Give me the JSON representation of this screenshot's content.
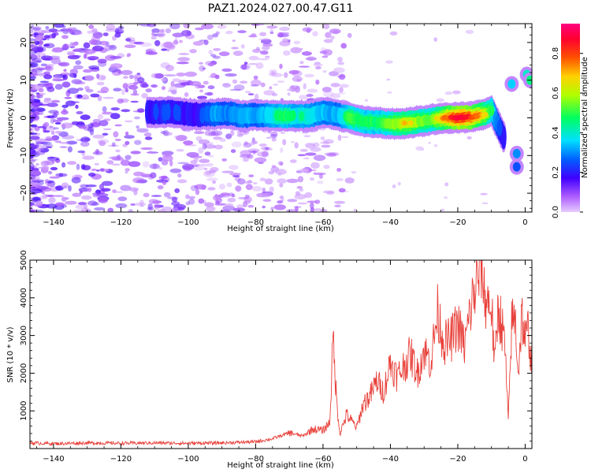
{
  "figure": {
    "title": "PAZ1.2024.027.00.47.G11"
  },
  "chart_data": [
    {
      "type": "heatmap",
      "xlabel": "Height of straight line (km)",
      "ylabel": "Frequency (Hz)",
      "xlim": [
        -147,
        2
      ],
      "ylim": [
        -25,
        25
      ],
      "xticks": [
        -140,
        -120,
        -100,
        -80,
        -60,
        -40,
        -20,
        0
      ],
      "yticks": [
        -20,
        -10,
        0,
        10,
        20
      ],
      "colorbar": {
        "label": "Normalized spectral amplitude",
        "range": [
          0,
          0.95
        ],
        "ticks": [
          0.0,
          0.2,
          0.4,
          0.6,
          0.8
        ],
        "colormap": "gist_rainbow_r (purple-blue-cyan-green-yellow-red-magenta)",
        "low_color": "#ffffff"
      },
      "ridge": [
        {
          "x": -112,
          "y": 1.5,
          "amp": 0.3
        },
        {
          "x": -105,
          "y": 1.5,
          "amp": 0.32
        },
        {
          "x": -97,
          "y": 0.8,
          "amp": 0.28
        },
        {
          "x": -92,
          "y": 1.0,
          "amp": 0.42
        },
        {
          "x": -88,
          "y": 1.2,
          "amp": 0.38
        },
        {
          "x": -84,
          "y": 0.5,
          "amp": 0.45
        },
        {
          "x": -80,
          "y": 0.8,
          "amp": 0.4
        },
        {
          "x": -76,
          "y": 0.6,
          "amp": 0.48
        },
        {
          "x": -72,
          "y": 0.5,
          "amp": 0.55
        },
        {
          "x": -68,
          "y": 0.5,
          "amp": 0.5
        },
        {
          "x": -64,
          "y": 0.5,
          "amp": 0.5
        },
        {
          "x": -60,
          "y": 1.5,
          "amp": 0.45
        },
        {
          "x": -56,
          "y": 0.8,
          "amp": 0.42
        },
        {
          "x": -52,
          "y": 0.0,
          "amp": 0.6
        },
        {
          "x": -48,
          "y": -1.0,
          "amp": 0.55
        },
        {
          "x": -44,
          "y": -1.2,
          "amp": 0.55
        },
        {
          "x": -40,
          "y": -1.5,
          "amp": 0.62
        },
        {
          "x": -36,
          "y": -1.5,
          "amp": 0.7
        },
        {
          "x": -32,
          "y": -1.0,
          "amp": 0.65
        },
        {
          "x": -28,
          "y": -0.5,
          "amp": 0.6
        },
        {
          "x": -24,
          "y": 0.0,
          "amp": 0.75
        },
        {
          "x": -20,
          "y": 0.0,
          "amp": 0.92
        },
        {
          "x": -16,
          "y": 0.2,
          "amp": 0.85
        },
        {
          "x": -12,
          "y": 1.0,
          "amp": 0.7
        },
        {
          "x": -10,
          "y": 2.0,
          "amp": 0.55
        },
        {
          "x": -8,
          "y": -2.0,
          "amp": 0.35
        },
        {
          "x": -6,
          "y": -6.0,
          "amp": 0.3
        }
      ],
      "late_features": [
        {
          "x": -4,
          "y": 9.0,
          "amp": 0.35
        },
        {
          "x": -2.5,
          "y": -9.5,
          "amp": 0.3
        },
        {
          "x": -2.5,
          "y": -13.0,
          "amp": 0.25
        },
        {
          "x": 0.5,
          "y": 11.5,
          "amp": 0.4
        },
        {
          "x": 1.5,
          "y": 10.0,
          "amp": 0.45
        }
      ]
    },
    {
      "type": "line",
      "xlabel": "Height of straight line (km)",
      "ylabel": "SNR (10 * v/v)",
      "xlim": [
        -147,
        2
      ],
      "ylim": [
        0,
        5000
      ],
      "xticks": [
        -140,
        -120,
        -100,
        -80,
        -60,
        -40,
        -20,
        0
      ],
      "yticks": [
        1000,
        2000,
        3000,
        4000,
        5000
      ],
      "color": "#e8403a",
      "x": [
        -147,
        -140,
        -130,
        -120,
        -110,
        -100,
        -90,
        -80,
        -75,
        -70,
        -66,
        -63,
        -60,
        -58,
        -57,
        -56,
        -55,
        -53,
        -50,
        -48,
        -46,
        -44,
        -42,
        -40,
        -38,
        -36,
        -34,
        -32,
        -30,
        -28,
        -26,
        -24,
        -22,
        -20,
        -18,
        -16,
        -14,
        -13,
        -12,
        -10,
        -9,
        -8,
        -7,
        -6,
        -5,
        -4,
        -3,
        -2,
        -1,
        0,
        1,
        2
      ],
      "y": [
        150,
        130,
        150,
        140,
        150,
        140,
        150,
        180,
        260,
        420,
        330,
        520,
        480,
        700,
        2950,
        1300,
        400,
        900,
        550,
        1200,
        1400,
        1800,
        1500,
        2300,
        1900,
        2200,
        2500,
        2000,
        2600,
        2300,
        3600,
        2800,
        2900,
        3300,
        2700,
        3800,
        4500,
        4950,
        4000,
        3800,
        2200,
        3800,
        3300,
        2700,
        700,
        3300,
        3500,
        2000,
        3600,
        2800,
        3200,
        2000
      ]
    }
  ]
}
